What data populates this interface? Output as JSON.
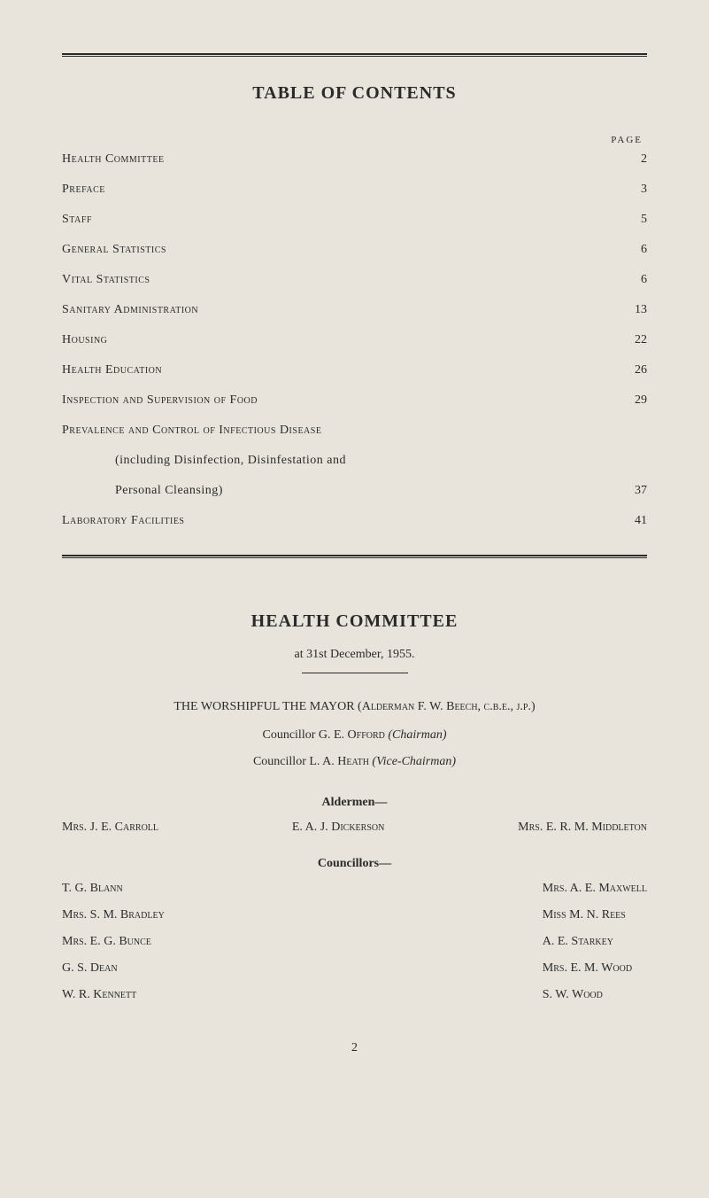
{
  "rules": {
    "color": "#2a2a2a"
  },
  "background_color": "#e8e4db",
  "text_color": "#2a2a2a",
  "toc": {
    "title": "TABLE OF CONTENTS",
    "page_header": "PAGE",
    "entries": [
      {
        "label": "Health Committee",
        "page": "2",
        "smallcaps": true
      },
      {
        "label": "Preface",
        "page": "3",
        "smallcaps": true
      },
      {
        "label": "Staff",
        "page": "5",
        "smallcaps": true
      },
      {
        "label": "General Statistics",
        "page": "6",
        "smallcaps": true
      },
      {
        "label": "Vital Statistics",
        "page": "6",
        "smallcaps": true
      },
      {
        "label": "Sanitary Administration",
        "page": "13",
        "smallcaps": true
      },
      {
        "label": "Housing",
        "page": "22",
        "smallcaps": true
      },
      {
        "label": "Health Education",
        "page": "26",
        "smallcaps": true
      },
      {
        "label": "Inspection and Supervision of Food",
        "page": "29",
        "smallcaps": true
      },
      {
        "label": "Prevalence and Control of Infectious Disease",
        "page": "",
        "smallcaps": true
      },
      {
        "label": "(including Disinfection, Disinfestation and",
        "page": "",
        "smallcaps": false,
        "indent": true
      },
      {
        "label": "Personal Cleansing)",
        "page": "37",
        "smallcaps": false,
        "indent": true
      },
      {
        "label": "Laboratory Facilities",
        "page": "41",
        "smallcaps": true
      }
    ]
  },
  "committee": {
    "title": "HEALTH COMMITTEE",
    "subtitle": "at 31st December, 1955.",
    "worshipful": "THE WORSHIPFUL THE MAYOR (Alderman F. W. Beech, c.b.e., j.p.)",
    "councillor1_prefix": "Councillor G. E. ",
    "councillor1_name": "Offord",
    "councillor1_role": "(Chairman)",
    "councillor2_prefix": "Councillor L. A. ",
    "councillor2_name": "Heath",
    "councillor2_role": "(Vice-Chairman)"
  },
  "aldermen": {
    "header": "Aldermen—",
    "left": "Mrs. J. E. Carroll",
    "center": "E. A. J. Dickerson",
    "right": "Mrs. E. R. M. Middleton"
  },
  "councillors": {
    "header": "Councillors—",
    "left": [
      "T. G. Blann",
      "Mrs. S. M. Bradley",
      "Mrs. E. G. Bunce",
      "G. S. Dean",
      "W. R. Kennett"
    ],
    "right": [
      "Mrs. A. E. Maxwell",
      "Miss M. N. Rees",
      "A. E. Starkey",
      "Mrs. E. M. Wood",
      "S. W. Wood"
    ]
  },
  "page_number": "2"
}
